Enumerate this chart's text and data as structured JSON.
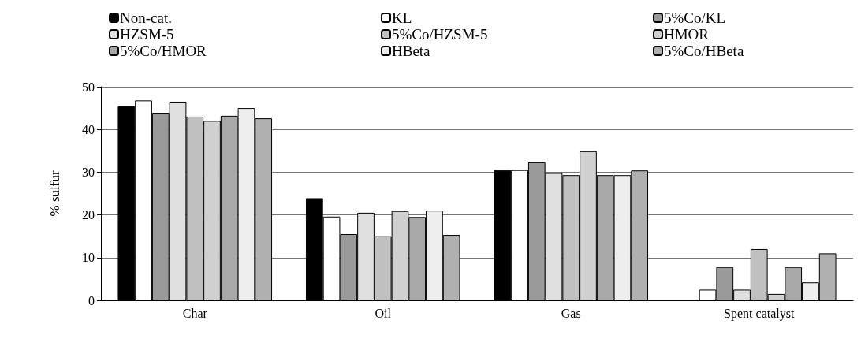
{
  "chart_data": {
    "type": "bar",
    "ylabel": "% sulfur",
    "categories": [
      "Char",
      "Oil",
      "Gas",
      "Spent catalyst"
    ],
    "ylim": [
      0,
      50
    ],
    "yticks": [
      0,
      10,
      20,
      30,
      40,
      50
    ],
    "grid": "y",
    "legend": "top",
    "series": [
      {
        "name": "Non-cat.",
        "color": "#000000",
        "values": [
          45.4,
          23.9,
          30.5,
          null
        ]
      },
      {
        "name": "KL",
        "color": "#ffffff",
        "values": [
          46.8,
          19.6,
          30.5,
          2.5
        ]
      },
      {
        "name": "5%Co/KL",
        "color": "#9a9a9a",
        "values": [
          43.9,
          15.5,
          32.3,
          7.8
        ]
      },
      {
        "name": "HZSM-5",
        "color": "#e0e0e0",
        "values": [
          46.5,
          20.5,
          29.8,
          2.5
        ]
      },
      {
        "name": "5%Co/HZSM-5",
        "color": "#c0c0c0",
        "values": [
          43,
          15,
          29.3,
          12
        ]
      },
      {
        "name": "HMOR",
        "color": "#d0d0d0",
        "values": [
          42,
          20.9,
          34.9,
          1.5
        ]
      },
      {
        "name": "5%Co/HMOR",
        "color": "#a8a8a8",
        "values": [
          43.2,
          19.5,
          29.3,
          7.8
        ]
      },
      {
        "name": "HBeta",
        "color": "#eeeeee",
        "values": [
          45,
          21,
          29.3,
          4.2
        ]
      },
      {
        "name": "5%Co/HBeta",
        "color": "#b0b0b0",
        "values": [
          42.6,
          15.3,
          30.4,
          11
        ]
      }
    ]
  }
}
